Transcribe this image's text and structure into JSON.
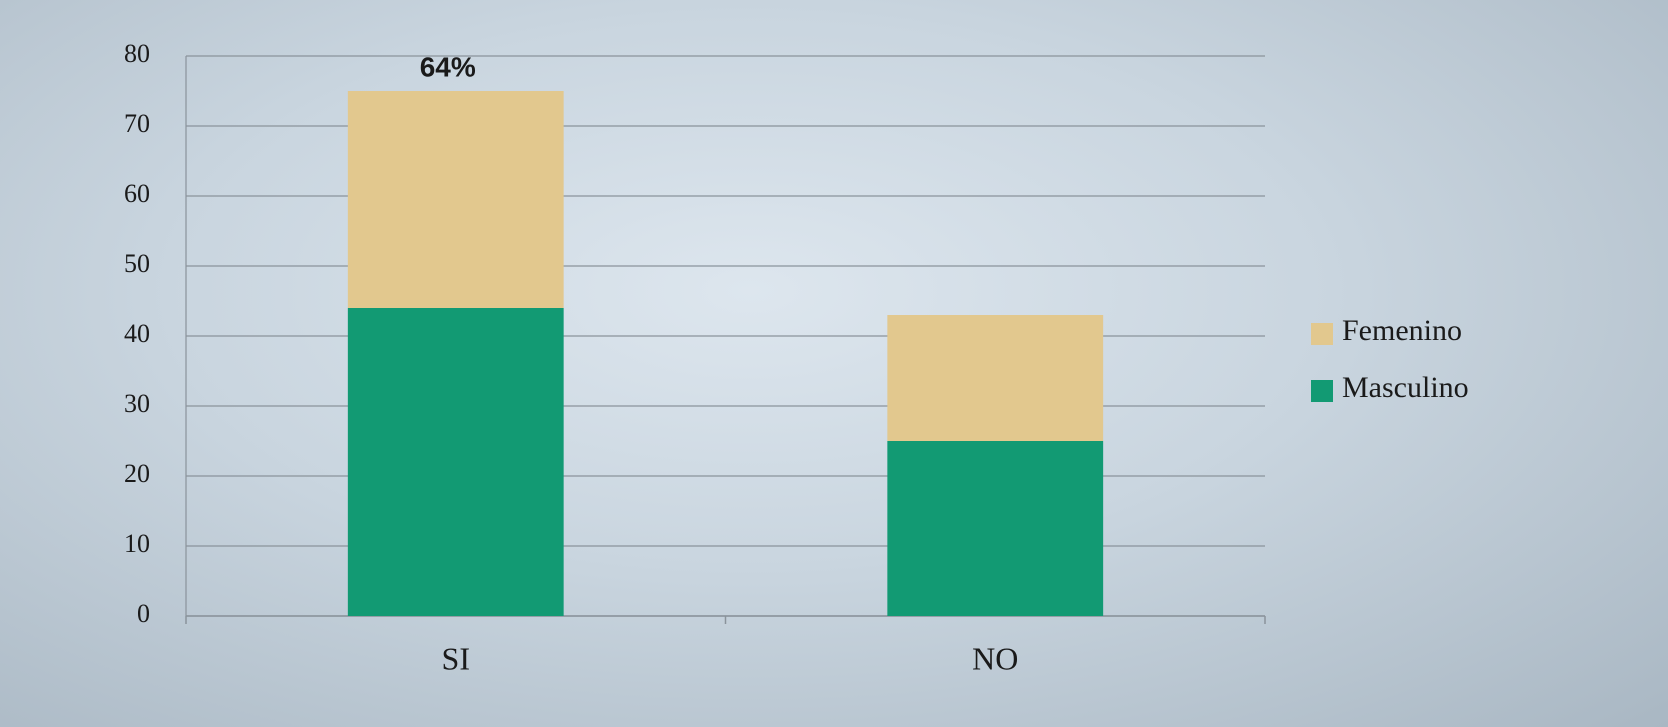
{
  "chart_data": {
    "type": "stacked-bar",
    "categories": [
      "SI",
      "NO"
    ],
    "series": [
      {
        "name": "Femenino",
        "color": "#e2c88e",
        "values": [
          31,
          18
        ]
      },
      {
        "name": "Masculino",
        "color": "#129a73",
        "values": [
          44,
          25
        ]
      }
    ],
    "annotations": [
      "64%"
    ],
    "ylim": [
      0,
      80
    ],
    "yticks": [
      0,
      10,
      20,
      30,
      40,
      50,
      60,
      70,
      80
    ],
    "grid": true,
    "legend": "right"
  }
}
